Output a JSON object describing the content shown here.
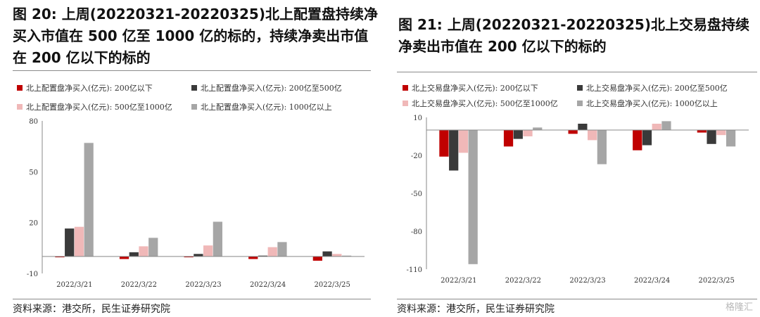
{
  "panels": [
    {
      "title": "图 20: 上周(20220321-20220325)北上配置盘持续净买入市值在 500 亿至 1000 亿的标的，持续净卖出市值在 200 亿以下的标的",
      "source": "资料来源：港交所，民生证券研究院"
    },
    {
      "title": "图 21: 上周(20220321-20220325)北上交易盘持续净卖出市值在 200 亿以下的标的",
      "source": "资料来源：港交所，民生证券研究院"
    }
  ],
  "watermark": "格隆汇",
  "chart_data": [
    {
      "type": "bar",
      "title": "",
      "xlabel": "",
      "ylabel": "",
      "categories": [
        "2022/3/21",
        "2022/3/22",
        "2022/3/23",
        "2022/3/24",
        "2022/3/25"
      ],
      "ylim": [
        -10,
        80
      ],
      "yticks": [
        -10,
        20,
        50,
        80
      ],
      "legend": "top",
      "series": [
        {
          "name": "北上配置盘净买入(亿元): 200亿以下",
          "color": "#c00000",
          "values": [
            -0.5,
            -1.5,
            -0.5,
            -1.5,
            -2.5
          ]
        },
        {
          "name": "北上配置盘净买入(亿元): 200亿至500亿",
          "color": "#3a3a3a",
          "values": [
            16.5,
            2.5,
            1.5,
            0.5,
            3
          ]
        },
        {
          "name": "北上配置盘净买入(亿元): 500亿至1000亿",
          "color": "#f0b8b8",
          "values": [
            17.5,
            6,
            6.5,
            5.5,
            1.5
          ]
        },
        {
          "name": "北上配置盘净买入(亿元): 1000亿以上",
          "color": "#a6a6a6",
          "values": [
            67,
            11,
            20.5,
            8.5,
            0.5
          ]
        }
      ]
    },
    {
      "type": "bar",
      "title": "",
      "xlabel": "",
      "ylabel": "",
      "categories": [
        "2022/3/21",
        "2022/3/22",
        "2022/3/23",
        "2022/3/24",
        "2022/3/25"
      ],
      "ylim": [
        -110,
        10
      ],
      "yticks": [
        -110,
        -80,
        -50,
        -20,
        10
      ],
      "legend": "top",
      "series": [
        {
          "name": "北上交易盘净买入(亿元): 200亿以下",
          "color": "#c00000",
          "values": [
            -21,
            -13,
            -3,
            -16,
            -2
          ]
        },
        {
          "name": "北上交易盘净买入(亿元): 200亿至500亿",
          "color": "#3a3a3a",
          "values": [
            -32,
            -7,
            5,
            -12,
            -11
          ]
        },
        {
          "name": "北上交易盘净买入(亿元): 500亿至1000亿",
          "color": "#f0b8b8",
          "values": [
            -18,
            -5,
            -8,
            5,
            -4
          ]
        },
        {
          "name": "北上交易盘净买入(亿元): 1000亿以上",
          "color": "#a6a6a6",
          "values": [
            -106,
            2,
            -27,
            7,
            -13
          ]
        }
      ]
    }
  ]
}
